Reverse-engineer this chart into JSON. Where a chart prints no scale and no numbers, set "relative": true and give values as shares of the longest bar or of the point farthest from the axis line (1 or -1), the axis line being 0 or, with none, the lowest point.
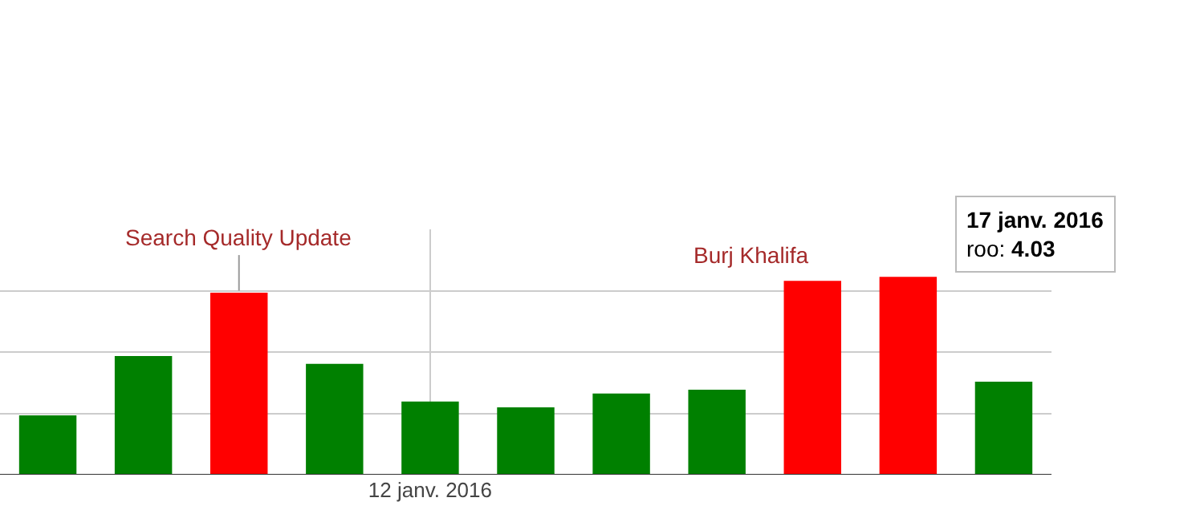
{
  "chart_data": {
    "type": "bar",
    "relative": true,
    "categories": [
      null,
      null,
      null,
      null,
      "12 janv. 2016",
      null,
      null,
      null,
      null,
      null,
      null
    ],
    "values": [
      0.3,
      0.6,
      0.92,
      0.56,
      0.37,
      0.34,
      0.41,
      0.43,
      0.98,
      1,
      0.47
    ],
    "colors": [
      "#008000",
      "#008000",
      "#ff0000",
      "#008000",
      "#008000",
      "#008000",
      "#008000",
      "#008000",
      "#ff0000",
      "#ff0000",
      "#008000"
    ],
    "annotations": [
      "Search Quality Update",
      "Burj Khalifa",
      "17 janv. 2016",
      "roo: 4.03"
    ],
    "grid": true
  }
}
